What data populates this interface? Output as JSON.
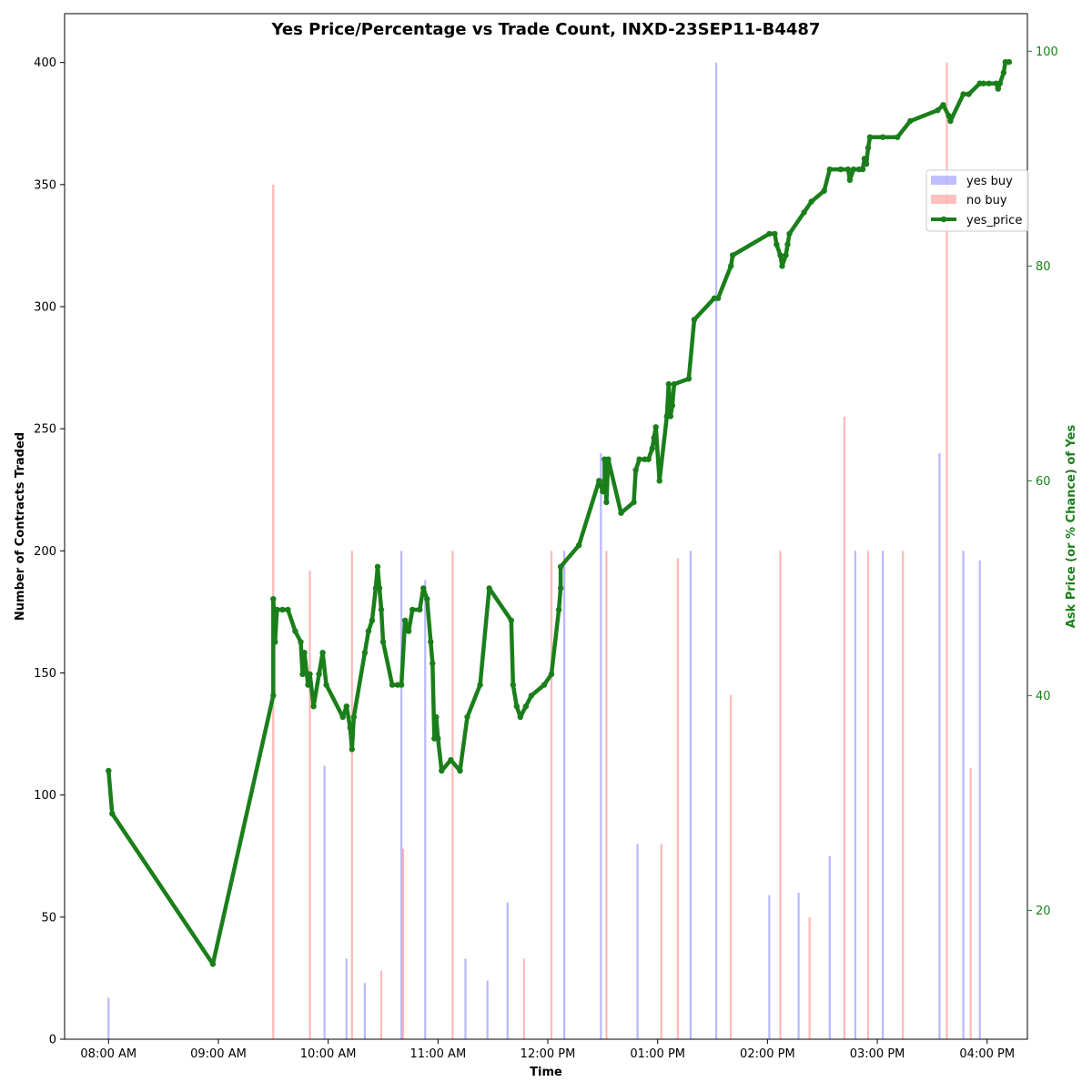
{
  "chart_data": {
    "type": "bar",
    "title": "Yes Price/Percentage vs Trade Count, INXD-23SEP11-B4487",
    "xlabel": "Time",
    "ylabel": "Number of Contracts Traded",
    "y2label": "Ask Price (or % Chance) of Yes",
    "xlim": [
      "07:36",
      "16:22"
    ],
    "ylim": [
      0,
      420
    ],
    "y2lim": [
      8,
      103.5
    ],
    "x_ticks": [
      "08:00 AM",
      "09:00 AM",
      "10:00 AM",
      "11:00 AM",
      "12:00 PM",
      "01:00 PM",
      "02:00 PM",
      "03:00 PM",
      "04:00 PM"
    ],
    "y_ticks": [
      0,
      50,
      100,
      150,
      200,
      250,
      300,
      350,
      400
    ],
    "y2_ticks": [
      20,
      40,
      60,
      80,
      100
    ],
    "legend_position": "right",
    "colors": {
      "yes_buy": "#0000ff",
      "no_buy": "#ff0000",
      "yes_price": "#1a7f1a"
    },
    "series": [
      {
        "name": "yes buy",
        "kind": "bar",
        "points": [
          [
            "08:00",
            17
          ],
          [
            "09:58",
            112
          ],
          [
            "10:10",
            33
          ],
          [
            "10:20",
            23
          ],
          [
            "10:40",
            200
          ],
          [
            "10:53",
            188
          ],
          [
            "11:15",
            33
          ],
          [
            "11:27",
            24
          ],
          [
            "11:38",
            56
          ],
          [
            "12:09",
            200
          ],
          [
            "12:29",
            240
          ],
          [
            "12:49",
            80
          ],
          [
            "13:18",
            200
          ],
          [
            "13:32",
            400
          ],
          [
            "14:01",
            59
          ],
          [
            "14:17",
            60
          ],
          [
            "14:34",
            75
          ],
          [
            "14:48",
            200
          ],
          [
            "15:03",
            200
          ],
          [
            "15:34",
            240
          ],
          [
            "15:47",
            200
          ],
          [
            "15:56",
            196
          ]
        ]
      },
      {
        "name": "no buy",
        "kind": "bar",
        "points": [
          [
            "09:30",
            350
          ],
          [
            "09:50",
            192
          ],
          [
            "10:13",
            200
          ],
          [
            "10:29",
            28
          ],
          [
            "10:41",
            78
          ],
          [
            "11:08",
            200
          ],
          [
            "11:47",
            33
          ],
          [
            "12:02",
            200
          ],
          [
            "12:32",
            200
          ],
          [
            "13:02",
            80
          ],
          [
            "13:11",
            197
          ],
          [
            "13:40",
            141
          ],
          [
            "14:07",
            200
          ],
          [
            "14:23",
            50
          ],
          [
            "14:42",
            255
          ],
          [
            "14:55",
            200
          ],
          [
            "15:14",
            200
          ],
          [
            "15:38",
            400
          ],
          [
            "15:51",
            111
          ]
        ]
      },
      {
        "name": "yes_price",
        "kind": "line",
        "points": [
          [
            "08:00",
            33
          ],
          [
            "08:02",
            29
          ],
          [
            "08:57",
            15
          ],
          [
            "09:30",
            40
          ],
          [
            "09:30",
            49
          ],
          [
            "09:31",
            45
          ],
          [
            "09:32",
            48
          ],
          [
            "09:35",
            48
          ],
          [
            "09:38",
            48
          ],
          [
            "09:42",
            46
          ],
          [
            "09:45",
            45
          ],
          [
            "09:46",
            42
          ],
          [
            "09:47",
            44
          ],
          [
            "09:49",
            41
          ],
          [
            "09:50",
            42
          ],
          [
            "09:52",
            39
          ],
          [
            "09:55",
            42
          ],
          [
            "09:57",
            44
          ],
          [
            "09:59",
            41
          ],
          [
            "10:08",
            38
          ],
          [
            "10:10",
            39
          ],
          [
            "10:12",
            37
          ],
          [
            "10:13",
            35
          ],
          [
            "10:14",
            38
          ],
          [
            "10:20",
            44
          ],
          [
            "10:22",
            46
          ],
          [
            "10:24",
            47
          ],
          [
            "10:26",
            50
          ],
          [
            "10:27",
            52
          ],
          [
            "10:28",
            50
          ],
          [
            "10:29",
            48
          ],
          [
            "10:30",
            45
          ],
          [
            "10:35",
            41
          ],
          [
            "10:38",
            41
          ],
          [
            "10:40",
            41
          ],
          [
            "10:42",
            47
          ],
          [
            "10:44",
            46
          ],
          [
            "10:46",
            48
          ],
          [
            "10:50",
            48
          ],
          [
            "10:52",
            50
          ],
          [
            "10:54",
            49
          ],
          [
            "10:56",
            45
          ],
          [
            "10:57",
            43
          ],
          [
            "10:58",
            36
          ],
          [
            "10:59",
            38
          ],
          [
            "11:00",
            36
          ],
          [
            "11:02",
            33
          ],
          [
            "11:07",
            34
          ],
          [
            "11:12",
            33
          ],
          [
            "11:16",
            38
          ],
          [
            "11:23",
            41
          ],
          [
            "11:28",
            50
          ],
          [
            "11:40",
            47
          ],
          [
            "11:41",
            41
          ],
          [
            "11:43",
            39
          ],
          [
            "11:45",
            38
          ],
          [
            "11:48",
            39
          ],
          [
            "11:51",
            40
          ],
          [
            "11:58",
            41
          ],
          [
            "12:02",
            42
          ],
          [
            "12:06",
            48
          ],
          [
            "12:07",
            50
          ],
          [
            "12:07",
            52
          ],
          [
            "12:17",
            54
          ],
          [
            "12:28",
            60
          ],
          [
            "12:30",
            59
          ],
          [
            "12:31",
            60
          ],
          [
            "12:31",
            62
          ],
          [
            "12:32",
            58
          ],
          [
            "12:33",
            62
          ],
          [
            "12:40",
            57
          ],
          [
            "12:47",
            58
          ],
          [
            "12:48",
            61
          ],
          [
            "12:50",
            62
          ],
          [
            "12:53",
            62
          ],
          [
            "12:55",
            62
          ],
          [
            "12:57",
            63
          ],
          [
            "12:58",
            64
          ],
          [
            "12:59",
            65
          ],
          [
            "13:01",
            60
          ],
          [
            "13:05",
            66
          ],
          [
            "13:06",
            69
          ],
          [
            "13:07",
            66
          ],
          [
            "13:08",
            67
          ],
          [
            "13:09",
            69
          ],
          [
            "13:17",
            69.5
          ],
          [
            "13:20",
            75
          ],
          [
            "13:31",
            77
          ],
          [
            "13:33",
            77
          ],
          [
            "13:40",
            80
          ],
          [
            "13:41",
            81
          ],
          [
            "14:01",
            83
          ],
          [
            "14:04",
            83
          ],
          [
            "14:05",
            82
          ],
          [
            "14:07",
            81
          ],
          [
            "14:08",
            80
          ],
          [
            "14:10",
            81
          ],
          [
            "14:11",
            82
          ],
          [
            "14:12",
            83
          ],
          [
            "14:20",
            85
          ],
          [
            "14:24",
            86
          ],
          [
            "14:31",
            87
          ],
          [
            "14:34",
            89
          ],
          [
            "14:40",
            89
          ],
          [
            "14:44",
            89
          ],
          [
            "14:45",
            88
          ],
          [
            "14:47",
            89
          ],
          [
            "14:50",
            89
          ],
          [
            "14:52",
            89
          ],
          [
            "14:53",
            90
          ],
          [
            "14:54",
            89.5
          ],
          [
            "14:55",
            91
          ],
          [
            "14:56",
            92
          ],
          [
            "15:03",
            92
          ],
          [
            "15:11",
            92
          ],
          [
            "15:18",
            93.5
          ],
          [
            "15:33",
            94.5
          ],
          [
            "15:36",
            95
          ],
          [
            "15:39",
            94
          ],
          [
            "15:40",
            93.5
          ],
          [
            "15:47",
            96
          ],
          [
            "15:50",
            96
          ],
          [
            "15:56",
            97
          ],
          [
            "15:58",
            97
          ],
          [
            "16:01",
            97
          ],
          [
            "16:05",
            97
          ],
          [
            "16:06",
            96.5
          ],
          [
            "16:07",
            97
          ],
          [
            "16:09",
            98
          ],
          [
            "16:10",
            99
          ],
          [
            "16:12",
            99
          ]
        ]
      }
    ]
  }
}
